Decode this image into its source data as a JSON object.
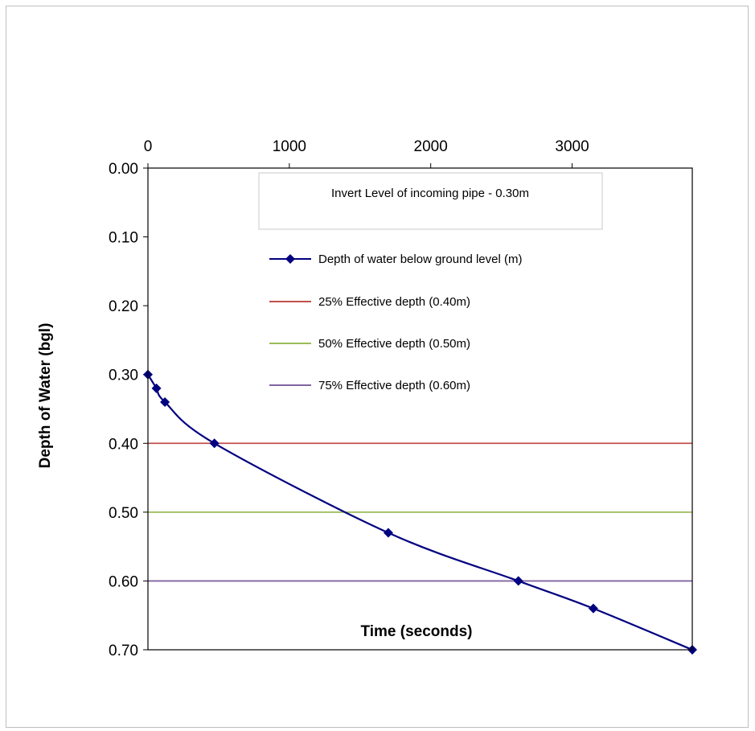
{
  "chart_data": {
    "type": "line",
    "xlabel": "Time (seconds)",
    "ylabel": "Depth of Water (bgl)",
    "x_axis_position": "top",
    "y_axis_inverted": true,
    "xlim": [
      0,
      3850
    ],
    "ylim": [
      0,
      0.7
    ],
    "x_ticks": [
      0,
      1000,
      2000,
      3000
    ],
    "x_tick_labels": [
      "0",
      "1000",
      "2000",
      "3000"
    ],
    "y_ticks": [
      0,
      0.1,
      0.2,
      0.3,
      0.4,
      0.5,
      0.6,
      0.7
    ],
    "y_tick_labels": [
      "0.00",
      "0.10",
      "0.20",
      "0.30",
      "0.40",
      "0.50",
      "0.60",
      "0.70"
    ],
    "grid": false,
    "legend_position": "center-right, upper half",
    "annotation": "Invert Level of incoming pipe - 0.30m",
    "series": [
      {
        "name": "Depth of water below ground level (m)",
        "color": "#000080",
        "marker": "diamond",
        "smooth": true,
        "x": [
          0,
          60,
          120,
          470,
          1700,
          2620,
          3150,
          3850
        ],
        "y": [
          0.3,
          0.32,
          0.34,
          0.4,
          0.53,
          0.6,
          0.64,
          0.7
        ]
      },
      {
        "name": "25% Effective depth (0.40m)",
        "color": "#c0504d",
        "type": "hline",
        "y": 0.4
      },
      {
        "name": "50% Effective depth (0.50m)",
        "color": "#9bbb59",
        "type": "hline",
        "y": 0.5
      },
      {
        "name": "75% Effective depth (0.60m)",
        "color": "#8064a2",
        "type": "hline",
        "y": 0.6
      }
    ]
  }
}
